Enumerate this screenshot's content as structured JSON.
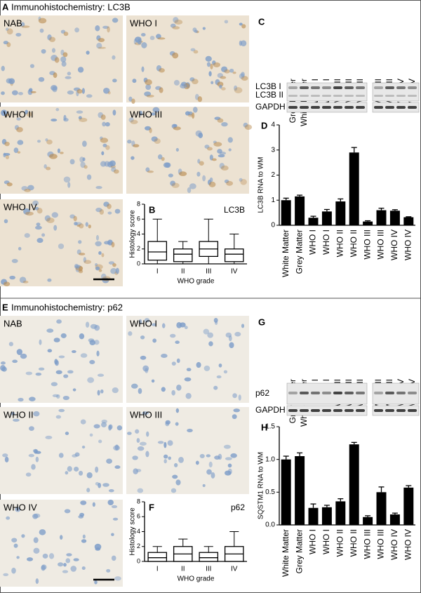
{
  "figure": {
    "top": {
      "letter": "A",
      "title": "Immunohistochemistry: LC3B",
      "images": [
        "NAB",
        "WHO I",
        "WHO II",
        "WHO III",
        "WHO IV"
      ],
      "blot": {
        "letter": "C",
        "lanes": [
          [
            "Grey Matter",
            "White Matter",
            "WHO I",
            "WHO I",
            "WHO II",
            "WHO II",
            "WHO II"
          ],
          [
            "WHO III",
            "WHO III",
            "WHO IV",
            "WHO IV"
          ]
        ],
        "rows": [
          "LC3B I",
          "LC3B II",
          "GAPDH"
        ]
      }
    },
    "bottom": {
      "letter": "E",
      "title": "Immunohistochemistry: p62",
      "images": [
        "NAB",
        "WHO I",
        "WHO II",
        "WHO III",
        "WHO IV"
      ],
      "blot": {
        "letter": "G",
        "lanes": [
          [
            "Grey Matter",
            "White Matter",
            "WHO I",
            "WHO I",
            "WHO II",
            "WHO II",
            "WHO II"
          ],
          [
            "WHO III",
            "WHO III",
            "WHO IV",
            "WHO IV"
          ]
        ],
        "rows": [
          "p62",
          "GAPDH"
        ]
      }
    }
  },
  "chart_data": [
    {
      "type": "box",
      "label": "B",
      "annotation": "LC3B",
      "x_label": "WHO grade",
      "y_label": "Histology score",
      "categories": [
        "I",
        "II",
        "III",
        "IV"
      ],
      "min": [
        0,
        0,
        0,
        0
      ],
      "q1": [
        0.5,
        0.3,
        1,
        0.3
      ],
      "median": [
        1.6,
        1.3,
        2,
        1.3
      ],
      "q3": [
        3,
        2,
        3,
        2
      ],
      "max": [
        6,
        3,
        6,
        4
      ],
      "ylim": [
        0,
        8
      ],
      "yticks": [
        0,
        2,
        4,
        6,
        8
      ],
      "color": "#000000"
    },
    {
      "type": "bar",
      "label": "D",
      "y_label": "LC3B RNA to  WM",
      "categories": [
        "White Matter",
        "Grey Matter",
        "WHO I",
        "WHO I",
        "WHO II",
        "WHO II",
        "WHO III",
        "WHO III",
        "WHO IV",
        "WHO IV"
      ],
      "values": [
        1.0,
        1.15,
        0.3,
        0.55,
        0.95,
        2.9,
        0.15,
        0.6,
        0.58,
        0.32
      ],
      "errors": [
        0.08,
        0.05,
        0.06,
        0.08,
        0.1,
        0.2,
        0.03,
        0.08,
        0.04,
        0.02
      ],
      "ylim": [
        0,
        4
      ],
      "yticks": [
        0,
        1,
        2,
        3,
        4
      ],
      "color": "#000000"
    },
    {
      "type": "box",
      "label": "F",
      "annotation": "p62",
      "x_label": "WHO grade",
      "y_label": "Histology score",
      "categories": [
        "I",
        "II",
        "III",
        "IV"
      ],
      "min": [
        0,
        0,
        0,
        0
      ],
      "q1": [
        0,
        0,
        0,
        0
      ],
      "median": [
        0.5,
        1,
        0.5,
        1
      ],
      "q3": [
        1.2,
        2,
        1.2,
        2
      ],
      "max": [
        2,
        3,
        2,
        4
      ],
      "ylim": [
        0,
        8
      ],
      "yticks": [
        0,
        2,
        4,
        6,
        8
      ],
      "color": "#000000"
    },
    {
      "type": "bar",
      "label": "H",
      "y_label": "SQSTM1 RNA to WM",
      "categories": [
        "White Matter",
        "Grey Matter",
        "WHO I",
        "WHO I",
        "WHO II",
        "WHO II",
        "WHO III",
        "WHO III",
        "WHO IV",
        "WHO IV"
      ],
      "values": [
        1.0,
        1.05,
        0.26,
        0.27,
        0.36,
        1.23,
        0.12,
        0.5,
        0.16,
        0.57
      ],
      "errors": [
        0.05,
        0.05,
        0.06,
        0.03,
        0.04,
        0.03,
        0.02,
        0.08,
        0.02,
        0.03
      ],
      "ylim": [
        0,
        1.5
      ],
      "yticks": [
        {
          "value": 0,
          "label": "0.0"
        },
        0.5,
        {
          "value": 1,
          "label": "1.0"
        },
        1.5
      ],
      "color": "#000000"
    }
  ]
}
